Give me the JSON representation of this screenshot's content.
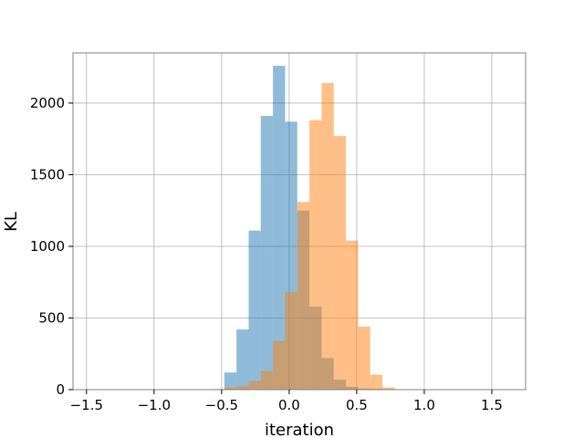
{
  "chart_data": {
    "type": "histogram",
    "title": "",
    "xlabel": "iteration",
    "ylabel": "KL",
    "xlim": [
      -1.6,
      1.75
    ],
    "ylim": [
      0,
      2350
    ],
    "grid": true,
    "legend": "none",
    "bin_width": 0.09,
    "xticks": [
      -1.5,
      -1.0,
      -0.5,
      0.0,
      0.5,
      1.0,
      1.5
    ],
    "xtick_labels": [
      "−1.5",
      "−1.0",
      "−0.5",
      "0.0",
      "0.5",
      "1.0",
      "1.5"
    ],
    "yticks": [
      0,
      500,
      1000,
      1500,
      2000
    ],
    "ytick_labels": [
      "0",
      "500",
      "1000",
      "1500",
      "2000"
    ],
    "series": [
      {
        "color": "#1f77b4",
        "alpha": 0.5,
        "bins": [
          {
            "x0": -0.57,
            "count": 3
          },
          {
            "x0": -0.48,
            "count": 120
          },
          {
            "x0": -0.39,
            "count": 420
          },
          {
            "x0": -0.3,
            "count": 1110
          },
          {
            "x0": -0.21,
            "count": 1910
          },
          {
            "x0": -0.12,
            "count": 2260
          },
          {
            "x0": -0.03,
            "count": 1870
          },
          {
            "x0": 0.06,
            "count": 1250
          },
          {
            "x0": 0.15,
            "count": 580
          },
          {
            "x0": 0.24,
            "count": 220
          },
          {
            "x0": 0.33,
            "count": 70
          },
          {
            "x0": 0.42,
            "count": 20
          },
          {
            "x0": 0.51,
            "count": 8
          },
          {
            "x0": 0.6,
            "count": 6
          },
          {
            "x0": 0.69,
            "count": 4
          }
        ]
      },
      {
        "color": "#ff7f0e",
        "alpha": 0.5,
        "bins": [
          {
            "x0": -0.75,
            "count": 3
          },
          {
            "x0": -0.66,
            "count": 2
          },
          {
            "x0": -0.57,
            "count": 5
          },
          {
            "x0": -0.48,
            "count": 15
          },
          {
            "x0": -0.39,
            "count": 25
          },
          {
            "x0": -0.3,
            "count": 60
          },
          {
            "x0": -0.21,
            "count": 130
          },
          {
            "x0": -0.12,
            "count": 340
          },
          {
            "x0": -0.03,
            "count": 680
          },
          {
            "x0": 0.06,
            "count": 1310
          },
          {
            "x0": 0.15,
            "count": 1880
          },
          {
            "x0": 0.24,
            "count": 2140
          },
          {
            "x0": 0.33,
            "count": 1770
          },
          {
            "x0": 0.42,
            "count": 1040
          },
          {
            "x0": 0.51,
            "count": 440
          },
          {
            "x0": 0.6,
            "count": 105
          },
          {
            "x0": 0.69,
            "count": 15
          },
          {
            "x0": 0.78,
            "count": 3
          }
        ]
      }
    ]
  }
}
